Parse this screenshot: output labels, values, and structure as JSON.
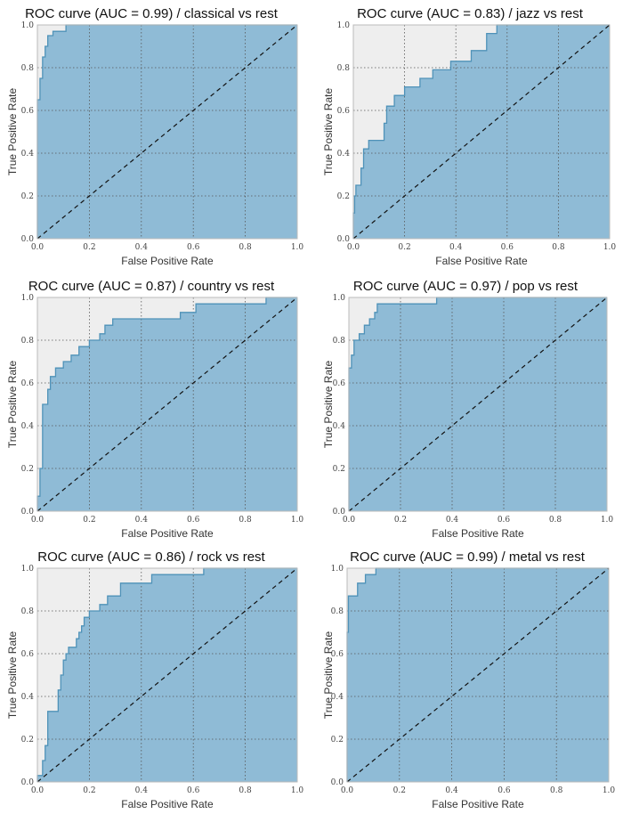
{
  "chart_data": [
    {
      "type": "area",
      "title": "ROC curve (AUC = 0.99) / classical vs rest",
      "xlabel": "False Positive Rate",
      "ylabel": "True Positive Rate",
      "xlim": [
        0,
        1
      ],
      "ylim": [
        0,
        1
      ],
      "xticks": [
        "0.0",
        "0.2",
        "0.4",
        "0.6",
        "0.8",
        "1.0"
      ],
      "yticks": [
        "0.0",
        "0.2",
        "0.4",
        "0.6",
        "0.8",
        "1.0"
      ],
      "grid": true,
      "curve_color": "#4f92b8",
      "fill_color": "#8fbbd6",
      "background_color": "#eeeeee",
      "diagonal_style": "dashed",
      "points": [
        [
          0,
          0
        ],
        [
          0,
          0.65
        ],
        [
          0.01,
          0.65
        ],
        [
          0.01,
          0.75
        ],
        [
          0.02,
          0.75
        ],
        [
          0.02,
          0.85
        ],
        [
          0.03,
          0.85
        ],
        [
          0.03,
          0.9
        ],
        [
          0.04,
          0.9
        ],
        [
          0.04,
          0.95
        ],
        [
          0.06,
          0.95
        ],
        [
          0.06,
          0.97
        ],
        [
          0.11,
          0.97
        ],
        [
          0.11,
          1.0
        ],
        [
          1,
          1
        ]
      ]
    },
    {
      "type": "area",
      "title": "ROC curve (AUC = 0.83) / jazz vs rest",
      "xlabel": "False Positive Rate",
      "ylabel": "True Positive Rate",
      "xlim": [
        0,
        1
      ],
      "ylim": [
        0,
        1
      ],
      "xticks": [
        "0.0",
        "0.2",
        "0.4",
        "0.6",
        "0.8",
        "1.0"
      ],
      "yticks": [
        "0.0",
        "0.2",
        "0.4",
        "0.6",
        "0.8",
        "1.0"
      ],
      "grid": true,
      "curve_color": "#4f92b8",
      "fill_color": "#8fbbd6",
      "background_color": "#eeeeee",
      "diagonal_style": "dashed",
      "points": [
        [
          0,
          0
        ],
        [
          0,
          0.12
        ],
        [
          0.005,
          0.12
        ],
        [
          0.005,
          0.2
        ],
        [
          0.01,
          0.2
        ],
        [
          0.01,
          0.25
        ],
        [
          0.03,
          0.25
        ],
        [
          0.03,
          0.33
        ],
        [
          0.04,
          0.33
        ],
        [
          0.04,
          0.42
        ],
        [
          0.06,
          0.42
        ],
        [
          0.06,
          0.46
        ],
        [
          0.12,
          0.46
        ],
        [
          0.12,
          0.54
        ],
        [
          0.13,
          0.54
        ],
        [
          0.13,
          0.62
        ],
        [
          0.16,
          0.62
        ],
        [
          0.16,
          0.67
        ],
        [
          0.2,
          0.67
        ],
        [
          0.2,
          0.71
        ],
        [
          0.26,
          0.71
        ],
        [
          0.26,
          0.75
        ],
        [
          0.31,
          0.75
        ],
        [
          0.31,
          0.79
        ],
        [
          0.38,
          0.79
        ],
        [
          0.38,
          0.83
        ],
        [
          0.46,
          0.83
        ],
        [
          0.46,
          0.88
        ],
        [
          0.52,
          0.88
        ],
        [
          0.52,
          0.96
        ],
        [
          0.56,
          0.96
        ],
        [
          0.56,
          1.0
        ],
        [
          1,
          1
        ]
      ]
    },
    {
      "type": "area",
      "title": "ROC curve (AUC = 0.87) / country vs rest",
      "xlabel": "False Positive Rate",
      "ylabel": "True Positive Rate",
      "xlim": [
        0,
        1
      ],
      "ylim": [
        0,
        1
      ],
      "xticks": [
        "0.0",
        "0.2",
        "0.4",
        "0.6",
        "0.8",
        "1.0"
      ],
      "yticks": [
        "0.0",
        "0.2",
        "0.4",
        "0.6",
        "0.8",
        "1.0"
      ],
      "grid": true,
      "curve_color": "#4f92b8",
      "fill_color": "#8fbbd6",
      "background_color": "#eeeeee",
      "diagonal_style": "dashed",
      "points": [
        [
          0,
          0
        ],
        [
          0,
          0.07
        ],
        [
          0.01,
          0.07
        ],
        [
          0.01,
          0.2
        ],
        [
          0.02,
          0.2
        ],
        [
          0.02,
          0.5
        ],
        [
          0.04,
          0.5
        ],
        [
          0.04,
          0.57
        ],
        [
          0.05,
          0.57
        ],
        [
          0.05,
          0.63
        ],
        [
          0.07,
          0.63
        ],
        [
          0.07,
          0.67
        ],
        [
          0.1,
          0.67
        ],
        [
          0.1,
          0.7
        ],
        [
          0.13,
          0.7
        ],
        [
          0.13,
          0.73
        ],
        [
          0.16,
          0.73
        ],
        [
          0.16,
          0.77
        ],
        [
          0.2,
          0.77
        ],
        [
          0.2,
          0.8
        ],
        [
          0.24,
          0.8
        ],
        [
          0.24,
          0.83
        ],
        [
          0.26,
          0.83
        ],
        [
          0.26,
          0.87
        ],
        [
          0.29,
          0.87
        ],
        [
          0.29,
          0.9
        ],
        [
          0.55,
          0.9
        ],
        [
          0.55,
          0.93
        ],
        [
          0.61,
          0.93
        ],
        [
          0.61,
          0.97
        ],
        [
          0.88,
          0.97
        ],
        [
          0.88,
          1.0
        ],
        [
          1,
          1
        ]
      ]
    },
    {
      "type": "area",
      "title": "ROC curve (AUC = 0.97) / pop vs rest",
      "xlabel": "False Positive Rate",
      "ylabel": "True Positive Rate",
      "xlim": [
        0,
        1
      ],
      "ylim": [
        0,
        1
      ],
      "xticks": [
        "0.0",
        "0.2",
        "0.4",
        "0.6",
        "0.8",
        "1.0"
      ],
      "yticks": [
        "0.0",
        "0.2",
        "0.4",
        "0.6",
        "0.8",
        "1.0"
      ],
      "grid": true,
      "curve_color": "#4f92b8",
      "fill_color": "#8fbbd6",
      "background_color": "#eeeeee",
      "diagonal_style": "dashed",
      "points": [
        [
          0,
          0
        ],
        [
          0,
          0.67
        ],
        [
          0.01,
          0.67
        ],
        [
          0.01,
          0.73
        ],
        [
          0.02,
          0.73
        ],
        [
          0.02,
          0.8
        ],
        [
          0.04,
          0.8
        ],
        [
          0.04,
          0.83
        ],
        [
          0.06,
          0.83
        ],
        [
          0.06,
          0.87
        ],
        [
          0.08,
          0.87
        ],
        [
          0.08,
          0.9
        ],
        [
          0.1,
          0.9
        ],
        [
          0.1,
          0.93
        ],
        [
          0.11,
          0.93
        ],
        [
          0.11,
          0.97
        ],
        [
          0.34,
          0.97
        ],
        [
          0.34,
          1.0
        ],
        [
          1,
          1
        ]
      ]
    },
    {
      "type": "area",
      "title": "ROC curve (AUC = 0.86) / rock vs rest",
      "xlabel": "False Positive Rate",
      "ylabel": "True Positive Rate",
      "xlim": [
        0,
        1
      ],
      "ylim": [
        0,
        1
      ],
      "xticks": [
        "0.0",
        "0.2",
        "0.4",
        "0.6",
        "0.8",
        "1.0"
      ],
      "yticks": [
        "0.0",
        "0.2",
        "0.4",
        "0.6",
        "0.8",
        "1.0"
      ],
      "grid": true,
      "curve_color": "#4f92b8",
      "fill_color": "#8fbbd6",
      "background_color": "#eeeeee",
      "diagonal_style": "dashed",
      "points": [
        [
          0,
          0
        ],
        [
          0,
          0.03
        ],
        [
          0.02,
          0.03
        ],
        [
          0.02,
          0.1
        ],
        [
          0.03,
          0.1
        ],
        [
          0.03,
          0.17
        ],
        [
          0.04,
          0.17
        ],
        [
          0.04,
          0.33
        ],
        [
          0.08,
          0.33
        ],
        [
          0.08,
          0.43
        ],
        [
          0.09,
          0.43
        ],
        [
          0.09,
          0.5
        ],
        [
          0.1,
          0.5
        ],
        [
          0.1,
          0.57
        ],
        [
          0.11,
          0.57
        ],
        [
          0.11,
          0.6
        ],
        [
          0.12,
          0.6
        ],
        [
          0.12,
          0.63
        ],
        [
          0.15,
          0.63
        ],
        [
          0.15,
          0.67
        ],
        [
          0.16,
          0.67
        ],
        [
          0.16,
          0.7
        ],
        [
          0.17,
          0.7
        ],
        [
          0.17,
          0.73
        ],
        [
          0.18,
          0.73
        ],
        [
          0.18,
          0.77
        ],
        [
          0.2,
          0.77
        ],
        [
          0.2,
          0.8
        ],
        [
          0.24,
          0.8
        ],
        [
          0.24,
          0.83
        ],
        [
          0.27,
          0.83
        ],
        [
          0.27,
          0.87
        ],
        [
          0.32,
          0.87
        ],
        [
          0.32,
          0.93
        ],
        [
          0.44,
          0.93
        ],
        [
          0.44,
          0.97
        ],
        [
          0.64,
          0.97
        ],
        [
          0.64,
          1.0
        ],
        [
          1,
          1
        ]
      ]
    },
    {
      "type": "area",
      "title": "ROC curve (AUC = 0.99) / metal vs rest",
      "xlabel": "False Positive Rate",
      "ylabel": "True Positive Rate",
      "xlim": [
        0,
        1
      ],
      "ylim": [
        0,
        1
      ],
      "xticks": [
        "0.0",
        "0.2",
        "0.4",
        "0.6",
        "0.8",
        "1.0"
      ],
      "yticks": [
        "0.0",
        "0.2",
        "0.4",
        "0.6",
        "0.8",
        "1.0"
      ],
      "grid": true,
      "curve_color": "#4f92b8",
      "fill_color": "#8fbbd6",
      "background_color": "#eeeeee",
      "diagonal_style": "dashed",
      "points": [
        [
          0,
          0
        ],
        [
          0,
          0.7
        ],
        [
          0.005,
          0.7
        ],
        [
          0.005,
          0.87
        ],
        [
          0.04,
          0.87
        ],
        [
          0.04,
          0.93
        ],
        [
          0.07,
          0.93
        ],
        [
          0.07,
          0.97
        ],
        [
          0.11,
          0.97
        ],
        [
          0.11,
          1.0
        ],
        [
          1,
          1
        ]
      ]
    }
  ]
}
